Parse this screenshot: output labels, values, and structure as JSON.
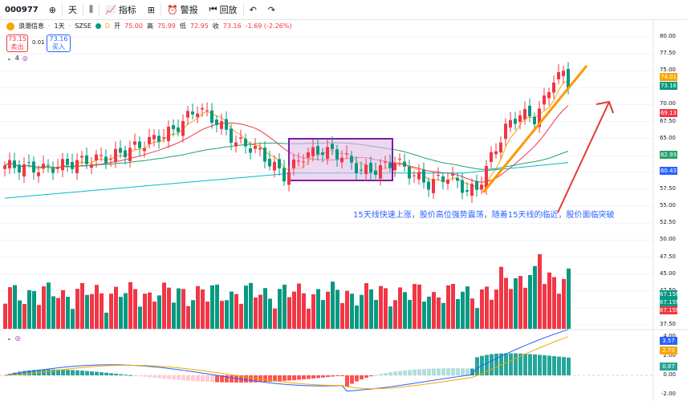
{
  "toolbar": {
    "symbol": "000977",
    "interval": "天",
    "indicators_label": "指标",
    "alert_label": "警报",
    "replay_label": "回放"
  },
  "legend": {
    "name": "浪潮信息",
    "interval": "1天",
    "exchange": "SZSE",
    "badge": "D",
    "open_label": "开",
    "open": "75.00",
    "high_label": "高",
    "high": "75.99",
    "low_label": "低",
    "low": "72.95",
    "close_label": "收",
    "close": "73.16",
    "change": "-1.69 (-2.26%)"
  },
  "trade": {
    "sell_price": "73.15",
    "sell_label": "卖出",
    "spread": "0.01",
    "buy_price": "73.16",
    "buy_label": "买入"
  },
  "indicator_count": "4",
  "annotation": "15天线快速上涨，股价高位强势震荡，随着15天线的临近，股价面临突破",
  "price_axis": [
    "80.00",
    "77.50",
    "75.00",
    "72.50",
    "70.00",
    "67.50",
    "65.00",
    "62.50",
    "60.00",
    "57.50",
    "55.00",
    "52.50",
    "50.00",
    "47.50",
    "45.00",
    "42.50",
    "40.00",
    "37.50"
  ],
  "price_tags": [
    {
      "value": "74.01",
      "color": "#f7a600"
    },
    {
      "value": "73.16",
      "color": "#089981"
    },
    {
      "value": "69.13",
      "color": "#f23645"
    },
    {
      "value": "62.93",
      "color": "#26a269"
    },
    {
      "value": "60.43",
      "color": "#2962ff"
    }
  ],
  "volume_tags": [
    {
      "value": "67.15M",
      "color": "#089981"
    },
    {
      "value": "67.15M",
      "color": "#089981"
    },
    {
      "value": "67.15M",
      "color": "#f23645"
    }
  ],
  "osc_axis": [
    "4.00",
    "2.00",
    "0.00",
    "-2.00"
  ],
  "osc_tags": [
    {
      "value": "3.57",
      "color": "#2962ff"
    },
    {
      "value": "2.70",
      "color": "#f7a600"
    },
    {
      "value": "0.87",
      "color": "#26a69a"
    }
  ],
  "colors": {
    "up": "#f23645",
    "down": "#089981",
    "ma_fast": "#f7a600",
    "ma_mid": "#f23645",
    "ma_slow": "#26a269",
    "ma_long": "#00bcd4",
    "box": "#7b1fa2"
  }
}
